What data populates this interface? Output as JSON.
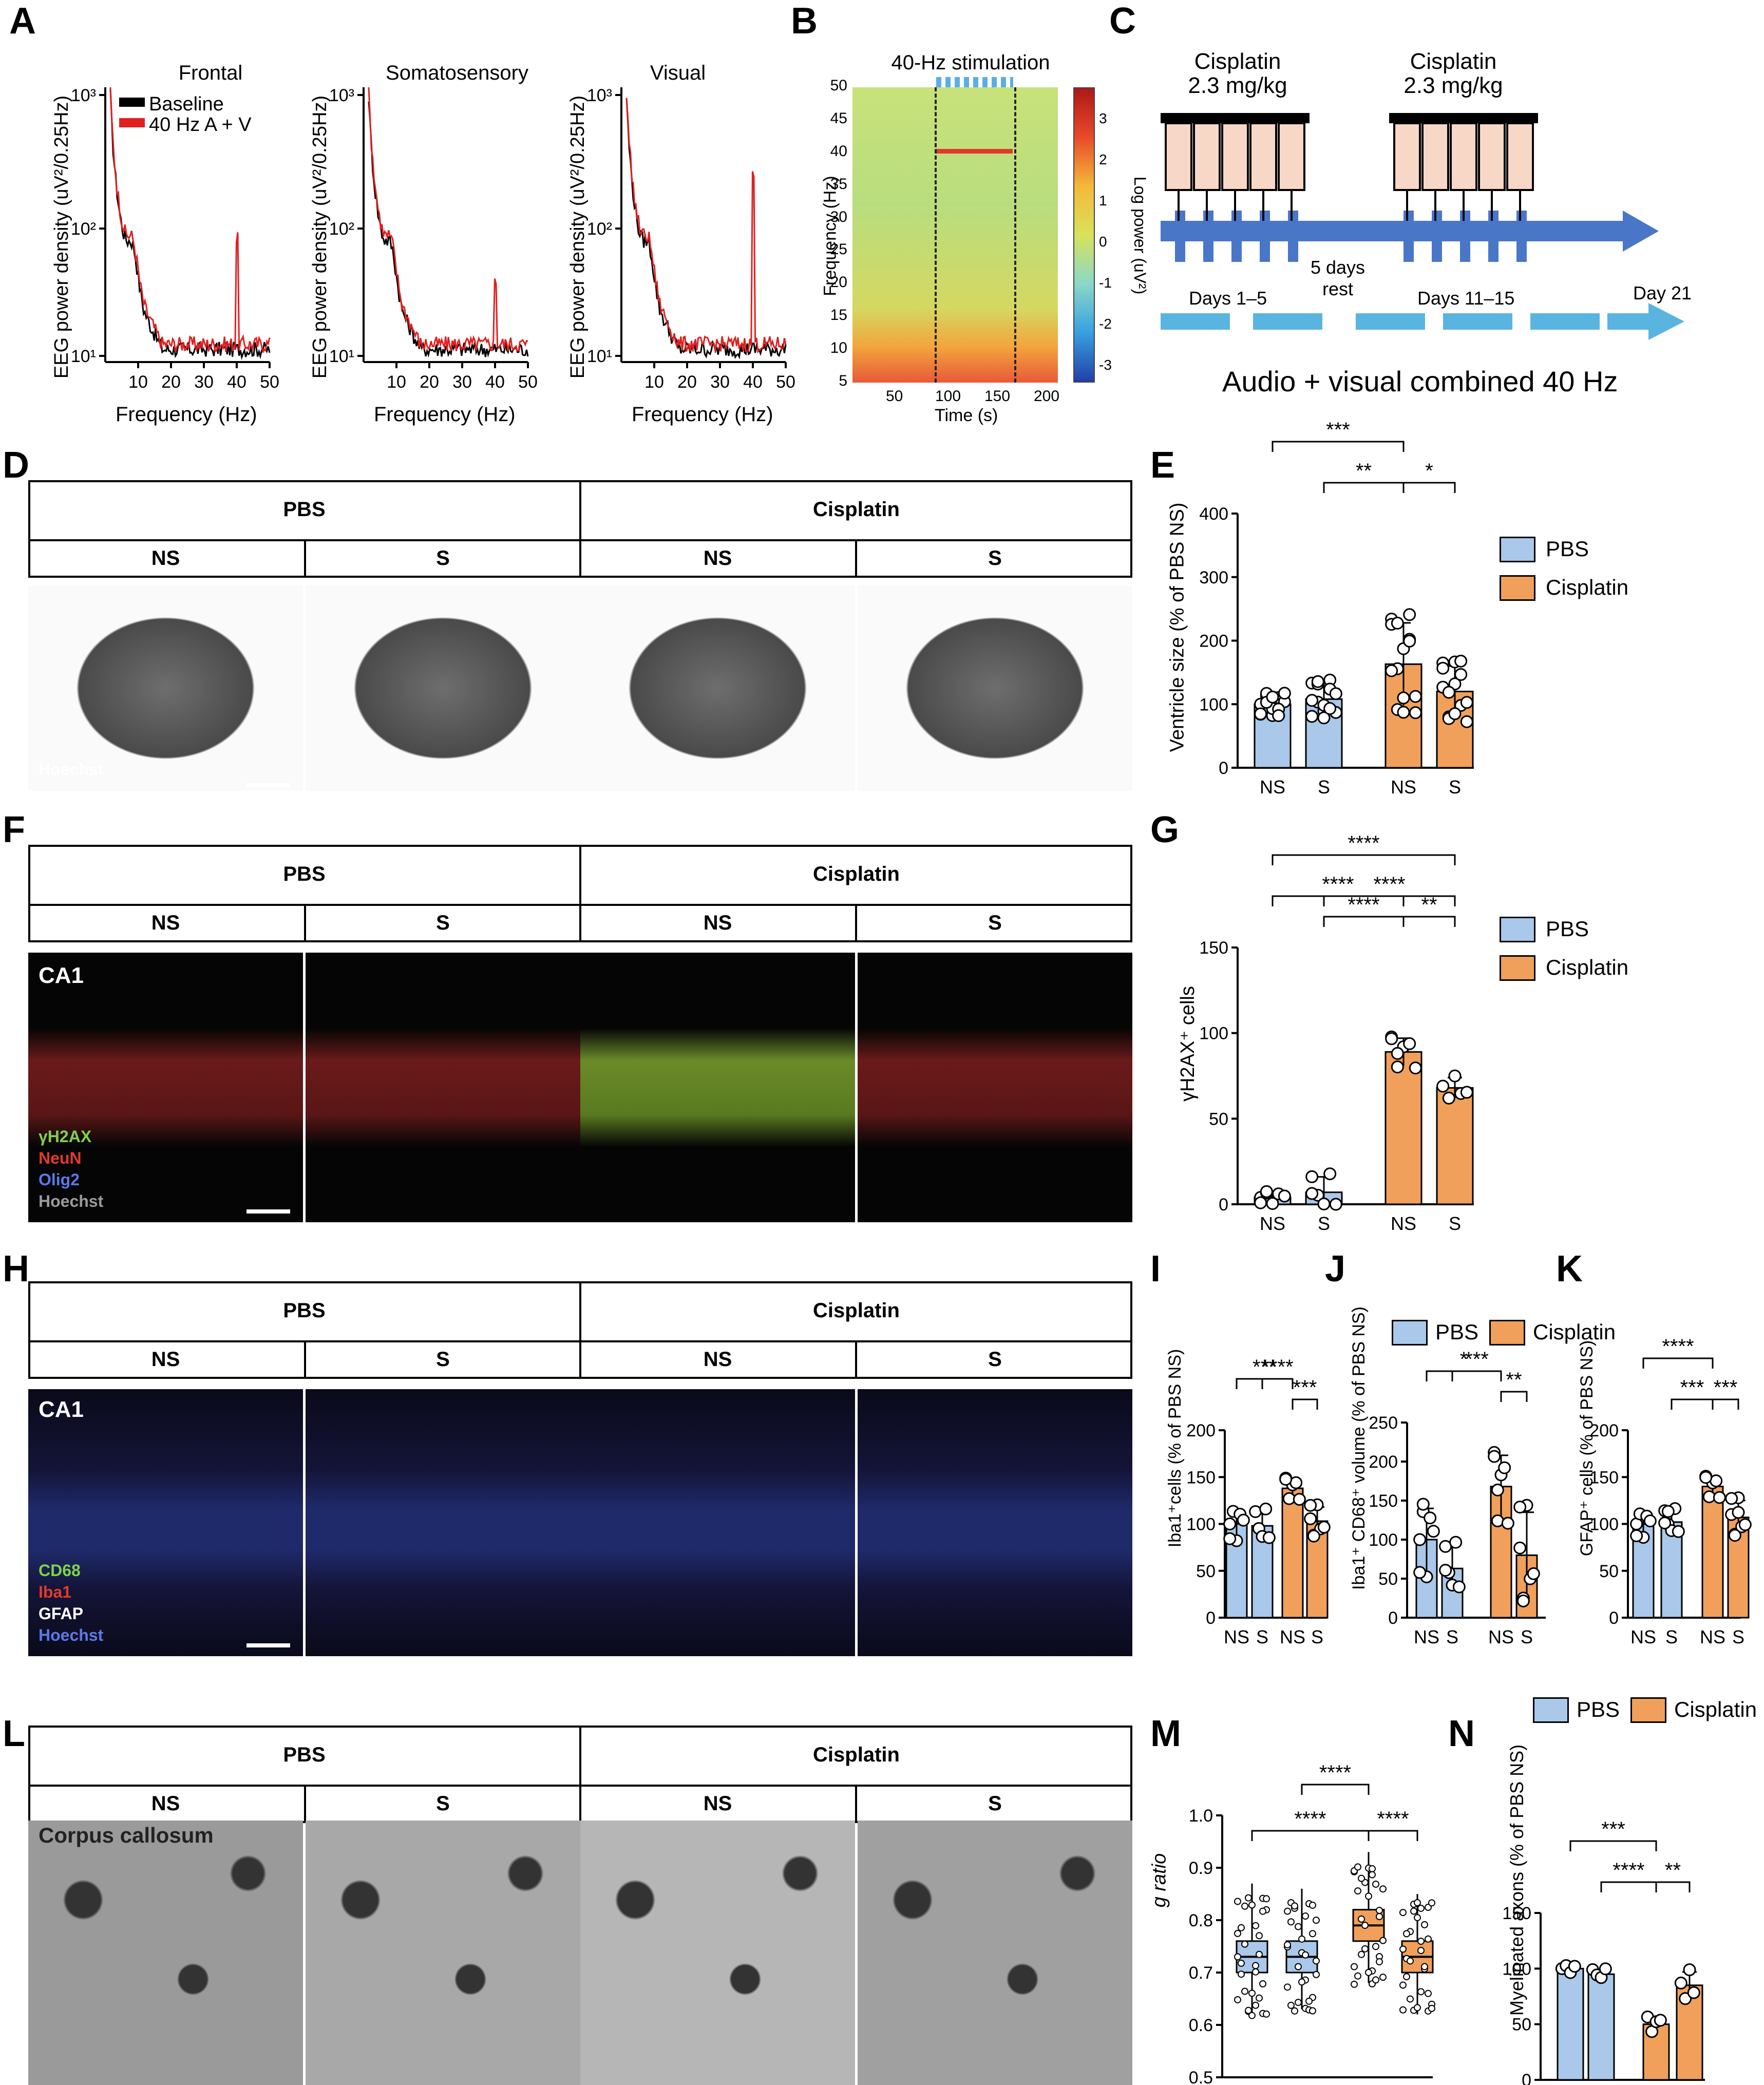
{
  "colors": {
    "pbs": "#a9c8ea",
    "cisplatin": "#f0a05a",
    "baseline": "#000000",
    "stim40": "#e02020"
  },
  "panelA": {
    "label": "A",
    "titles": [
      "Frontal",
      "Somatosensory",
      "Visual"
    ],
    "ylabel": "EEG power density (uV²/0.25Hz)",
    "xlabel": "Frequency (Hz)",
    "yticks": [
      "10³",
      "10²",
      "10¹"
    ],
    "xticks": [
      "10",
      "20",
      "30",
      "40",
      "50"
    ],
    "legend": [
      "Baseline",
      "40 Hz A + V"
    ]
  },
  "panelB": {
    "label": "B",
    "title": "40-Hz stimulation",
    "ylabel": "Frequency (Hz)",
    "xlabel": "Time (s)",
    "yticks": [
      "50",
      "45",
      "40",
      "35",
      "30",
      "25",
      "20",
      "15",
      "10",
      "5"
    ],
    "xticks": [
      "50",
      "100",
      "150",
      "200"
    ],
    "cbar_label": "Log power (uV²)",
    "cbar_ticks": [
      "3",
      "2",
      "1",
      "0",
      "-1",
      "-2",
      "-3"
    ]
  },
  "panelC": {
    "label": "C",
    "drug1": "Cisplatin",
    "dose1": "2.3 mg/kg",
    "drug2": "Cisplatin",
    "dose2": "2.3 mg/kg",
    "rest": "5 days rest",
    "days1": "Days 1–5",
    "days2": "Days 11–15",
    "day21": "Day 21",
    "caption": "Audio + visual combined 40 Hz"
  },
  "headers": {
    "pbs": "PBS",
    "cis": "Cisplatin",
    "ns": "NS",
    "s": "S"
  },
  "panelD": {
    "label": "D",
    "stain": "Hoechst"
  },
  "panelE": {
    "label": "E",
    "ylabel": "Ventricle size (% of PBS NS)",
    "yticks": [
      "400",
      "300",
      "200",
      "100",
      "0"
    ],
    "xticks": [
      "NS",
      "S",
      "NS",
      "S"
    ],
    "sig": [
      "***",
      "**",
      "*"
    ],
    "legend": [
      "PBS",
      "Cisplatin"
    ]
  },
  "panelF": {
    "label": "F",
    "region": "CA1",
    "stains": [
      "γH2AX",
      "NeuN",
      "Olig2",
      "Hoechst"
    ]
  },
  "panelG": {
    "label": "G",
    "ylabel": "γH2AX⁺ cells",
    "yticks": [
      "150",
      "100",
      "50",
      "0"
    ],
    "xticks": [
      "NS",
      "S",
      "NS",
      "S"
    ],
    "sig": [
      "****",
      "****",
      "****",
      "****",
      "**"
    ],
    "legend": [
      "PBS",
      "Cisplatin"
    ]
  },
  "panelH": {
    "label": "H",
    "region": "CA1",
    "stains": [
      "CD68",
      "Iba1",
      "GFAP",
      "Hoechst"
    ]
  },
  "panelI": {
    "label": "I",
    "ylabel": "Iba1⁺cells (% of PBS NS)",
    "yticks": [
      "200",
      "150",
      "100",
      "50",
      "0"
    ],
    "xticks": [
      "NS",
      "S",
      "NS",
      "S"
    ],
    "sig": [
      "****",
      "***",
      "***"
    ]
  },
  "panelJ": {
    "label": "J",
    "ylabel": "Iba1⁺ CD68⁺ volume (% of PBS NS)",
    "yticks": [
      "250",
      "200",
      "150",
      "100",
      "50",
      "0"
    ],
    "xticks": [
      "NS",
      "S",
      "NS",
      "S"
    ],
    "sig": [
      "***",
      "*",
      "**"
    ],
    "legend": [
      "PBS",
      "Cisplatin"
    ]
  },
  "panelK": {
    "label": "K",
    "ylabel": "GFAP⁺ cells (% of PBS NS)",
    "yticks": [
      "200",
      "150",
      "100",
      "50",
      "0"
    ],
    "xticks": [
      "NS",
      "S",
      "NS",
      "S"
    ],
    "sig": [
      "****",
      "***",
      "***"
    ]
  },
  "panelL": {
    "label": "L",
    "region": "Corpus callosum"
  },
  "panelM": {
    "label": "M",
    "ylabel": "g ratio",
    "yticks": [
      "1.0",
      "0.9",
      "0.8",
      "0.7",
      "0.6",
      "0.5"
    ],
    "xticks": [
      "NS",
      "S",
      "NS",
      "S"
    ],
    "sig": [
      "****",
      "****",
      "****"
    ]
  },
  "panelN": {
    "label": "N",
    "ylabel": "Myelinated axons (% of PBS NS)",
    "yticks": [
      "150",
      "100",
      "50",
      "0"
    ],
    "xticks": [
      "NS",
      "S",
      "NS",
      "S"
    ],
    "sig": [
      "***",
      "****",
      "**"
    ],
    "legend": [
      "PBS",
      "Cisplatin"
    ]
  },
  "chart_data": [
    {
      "type": "bar",
      "panel": "E",
      "categories": [
        "PBS NS",
        "PBS S",
        "Cisplatin NS",
        "Cisplatin S"
      ],
      "values": [
        100,
        108,
        163,
        120
      ],
      "errors": [
        15,
        25,
        65,
        40
      ],
      "ylim": [
        0,
        400
      ]
    },
    {
      "type": "bar",
      "panel": "G",
      "categories": [
        "PBS NS",
        "PBS S",
        "Cisplatin NS",
        "Cisplatin S"
      ],
      "values": [
        4,
        7,
        89,
        68
      ],
      "errors": [
        3,
        9,
        8,
        6
      ],
      "ylim": [
        0,
        150
      ]
    },
    {
      "type": "bar",
      "panel": "I",
      "categories": [
        "PBS NS",
        "PBS S",
        "Cisplatin NS",
        "Cisplatin S"
      ],
      "values": [
        100,
        98,
        138,
        103
      ],
      "errors": [
        15,
        15,
        10,
        15
      ],
      "ylim": [
        0,
        200
      ]
    },
    {
      "type": "bar",
      "panel": "J",
      "categories": [
        "PBS NS",
        "PBS S",
        "Cisplatin NS",
        "Cisplatin S"
      ],
      "values": [
        100,
        63,
        168,
        80
      ],
      "errors": [
        40,
        28,
        40,
        55
      ],
      "ylim": [
        0,
        250
      ]
    },
    {
      "type": "bar",
      "panel": "K",
      "categories": [
        "PBS NS",
        "PBS S",
        "Cisplatin NS",
        "Cisplatin S"
      ],
      "values": [
        100,
        102,
        140,
        107
      ],
      "errors": [
        12,
        12,
        10,
        18
      ],
      "ylim": [
        0,
        200
      ]
    },
    {
      "type": "box",
      "panel": "M",
      "categories": [
        "PBS NS",
        "PBS S",
        "Cisplatin NS",
        "Cisplatin S"
      ],
      "medians": [
        0.73,
        0.73,
        0.79,
        0.73
      ],
      "q1": [
        0.7,
        0.7,
        0.76,
        0.7
      ],
      "q3": [
        0.76,
        0.76,
        0.82,
        0.76
      ],
      "min": [
        0.62,
        0.63,
        0.68,
        0.62
      ],
      "max": [
        0.87,
        0.86,
        0.93,
        0.85
      ],
      "ylim": [
        0.5,
        1.0
      ]
    },
    {
      "type": "bar",
      "panel": "N",
      "categories": [
        "PBS NS",
        "PBS S",
        "Cisplatin NS",
        "Cisplatin S"
      ],
      "values": [
        100,
        95,
        50,
        85
      ],
      "errors": [
        3,
        4,
        6,
        12
      ],
      "ylim": [
        0,
        150
      ]
    }
  ]
}
